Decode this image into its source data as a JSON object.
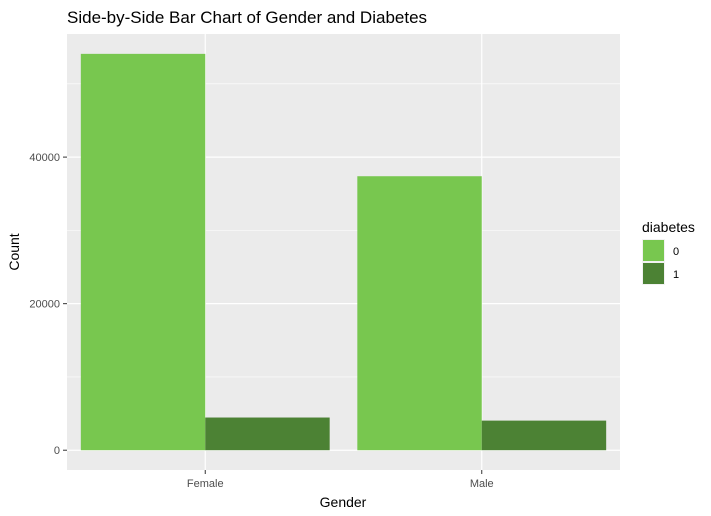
{
  "chart_data": {
    "type": "bar",
    "title": "Side-by-Side Bar Chart of Gender and Diabetes",
    "xlabel": "Gender",
    "ylabel": "Count",
    "categories": [
      "Female",
      "Male"
    ],
    "series": [
      {
        "name": "0",
        "values": [
          54091,
          37391
        ]
      },
      {
        "name": "1",
        "values": [
          4461,
          4039
        ]
      }
    ],
    "ylim": [
      -2700,
      56800
    ],
    "yticks": [
      0,
      20000,
      40000
    ],
    "ytick_labels": [
      "0",
      "20000",
      "40000"
    ],
    "grid": true,
    "legend": {
      "title": "diabetes",
      "position": "right"
    },
    "colors": {
      "0": "#78c74f",
      "1": "#4c8234",
      "panel": "#ebebeb",
      "grid": "#ffffff"
    }
  }
}
